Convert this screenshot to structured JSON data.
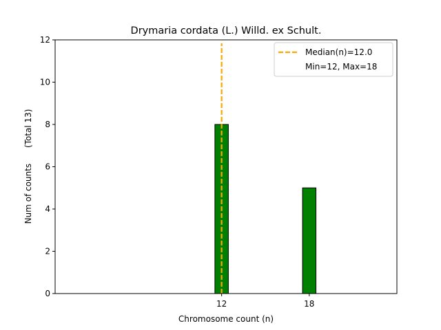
{
  "chart_data": {
    "type": "bar",
    "title": "Drymaria cordata (L.) Willd. ex Schult.",
    "xlabel": "Chromosome count (n)",
    "ylabel": "Num of counts      (Total 13)",
    "x": [
      12,
      18
    ],
    "values": [
      8,
      5
    ],
    "x_tick_labels": [
      "12",
      "18"
    ],
    "ylim": [
      0,
      12
    ],
    "y_ticks": [
      0,
      2,
      4,
      6,
      8,
      10,
      12
    ],
    "grid": false,
    "bar_color": "#008000",
    "bar_edge_color": "#000000",
    "median": {
      "value": 12.0,
      "label": "Median(n)=12.0",
      "color": "#ffa500"
    },
    "legend": {
      "placement": "top-right",
      "entries": [
        "Median(n)=12.0",
        "Min=12, Max=18"
      ]
    }
  }
}
